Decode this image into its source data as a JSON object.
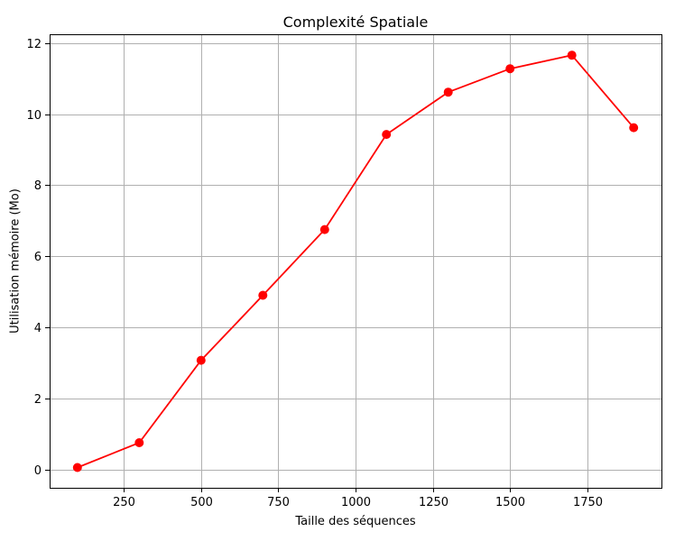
{
  "chart_data": {
    "type": "line",
    "title": "Complexité Spatiale",
    "xlabel": "Taille des séquences",
    "ylabel": "Utilisation mémoire (Mo)",
    "x": [
      100,
      300,
      500,
      700,
      900,
      1100,
      1300,
      1500,
      1700,
      1900
    ],
    "series": [
      {
        "values": [
          0.05,
          0.75,
          3.07,
          4.9,
          6.75,
          9.43,
          10.62,
          11.28,
          11.66,
          9.62
        ],
        "color": "#ff0000",
        "marker": "circle"
      }
    ],
    "xlim": [
      10,
      1990
    ],
    "ylim": [
      -0.52,
      12.25
    ],
    "xticks": [
      250,
      500,
      750,
      1000,
      1250,
      1500,
      1750
    ],
    "xtick_labels": [
      "250",
      "500",
      "750",
      "1000",
      "1250",
      "1500",
      "1750"
    ],
    "yticks": [
      0,
      2,
      4,
      6,
      8,
      10,
      12
    ],
    "ytick_labels": [
      "0",
      "2",
      "4",
      "6",
      "8",
      "10",
      "12"
    ],
    "grid": true
  }
}
